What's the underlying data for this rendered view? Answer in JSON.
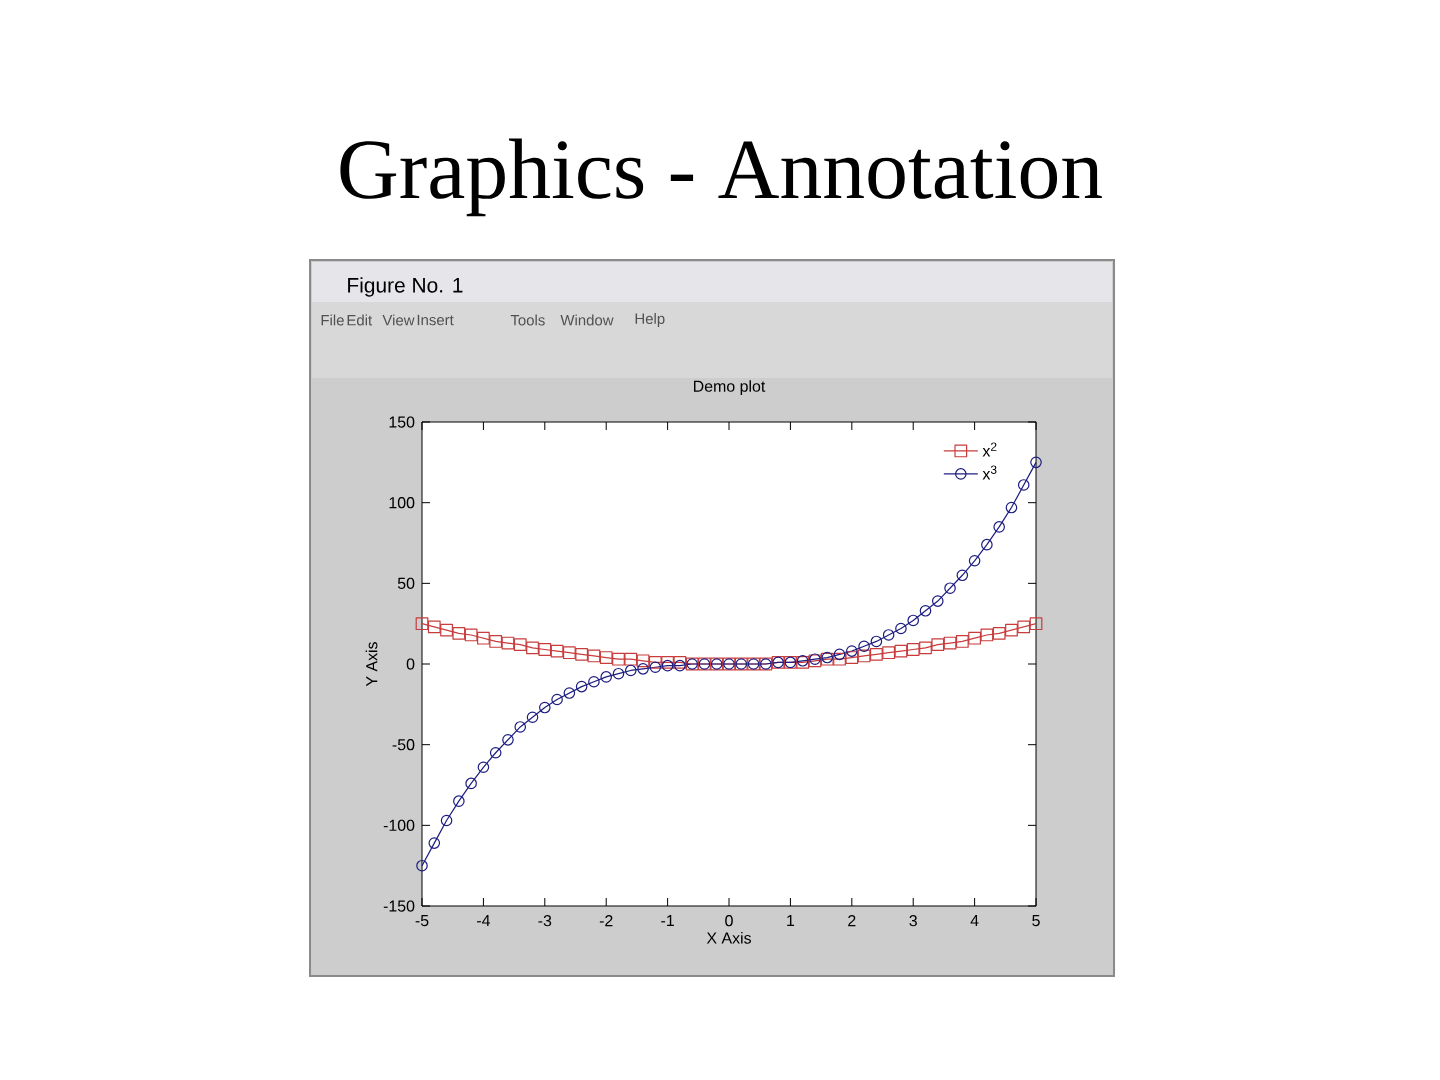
{
  "chart_data": {
    "type": "line",
    "title": "Demo plot",
    "xlabel": "X Axis",
    "ylabel": "Y Axis",
    "annotations": [
      "Graphics - Annotation",
      "Figure No. 1",
      "File",
      "Edit",
      "View",
      "Insert",
      "Tools",
      "Window",
      "Help"
    ],
    "x": [
      -5,
      -4.8,
      -4.6,
      -4.4,
      -4.2,
      -4,
      -3.8,
      -3.6,
      -3.4,
      -3.2,
      -3,
      -2.8,
      -2.6,
      -2.4,
      -2.2,
      -2,
      -1.8,
      -1.6,
      -1.4,
      -1.2,
      -1,
      -0.8,
      -0.6,
      -0.4,
      -0.2,
      0,
      0.2,
      0.4,
      0.6,
      0.8,
      1,
      1.2,
      1.4,
      1.6,
      1.8,
      2,
      2.2,
      2.4,
      2.6,
      2.8,
      3,
      3.2,
      3.4,
      3.6,
      3.8,
      4,
      4.2,
      4.4,
      4.6,
      4.8,
      5
    ],
    "series": [
      {
        "name": "x$^{2}$",
        "color": "#c83c3c",
        "marker": "square",
        "values": [
          25,
          23,
          21,
          19,
          18,
          16,
          14,
          13,
          12,
          10,
          9,
          8,
          7,
          6,
          5,
          4,
          3,
          3,
          2,
          1,
          1,
          1,
          0,
          0,
          0,
          0,
          0,
          0,
          0,
          1,
          1,
          1,
          2,
          3,
          3,
          4,
          5,
          6,
          7,
          8,
          9,
          10,
          12,
          13,
          14,
          16,
          18,
          19,
          21,
          23,
          25
        ]
      },
      {
        "name": "x$^{3}$",
        "color": "#1c1c80",
        "marker": "circle",
        "values": [
          -125,
          -111,
          -97,
          -85,
          -74,
          -64,
          -55,
          -47,
          -39,
          -33,
          -27,
          -22,
          -18,
          -14,
          -11,
          -8,
          -6,
          -4,
          -3,
          -2,
          -1,
          -1,
          0,
          0,
          0,
          0,
          0,
          0,
          0,
          1,
          1,
          2,
          3,
          4,
          6,
          8,
          11,
          14,
          18,
          22,
          27,
          33,
          39,
          47,
          55,
          64,
          74,
          85,
          97,
          111,
          125
        ]
      }
    ],
    "xlim": [
      -5,
      5
    ],
    "ylim": [
      -150,
      150
    ],
    "xticks": [
      -5,
      -4,
      -3,
      -2,
      -1,
      0,
      1,
      2,
      3,
      4,
      5
    ],
    "yticks": [
      -150,
      -100,
      -50,
      0,
      50,
      100,
      150
    ],
    "legend": "top right",
    "line_style": "solid"
  }
}
